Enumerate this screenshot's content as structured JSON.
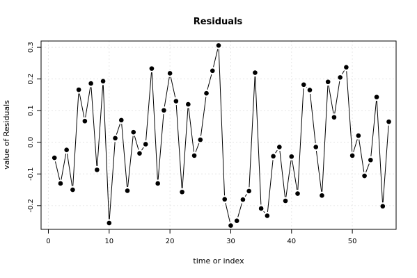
{
  "chart_data": {
    "type": "line",
    "title": "Residuals",
    "xlabel": "time or index",
    "ylabel": "value of Residuals",
    "xlim": [
      -1.2,
      57.2
    ],
    "ylim": [
      -0.275,
      0.32
    ],
    "x_ticks": [
      0,
      10,
      20,
      30,
      40,
      50
    ],
    "y_ticks": [
      -0.2,
      -0.1,
      0.0,
      0.1,
      0.2,
      0.3
    ],
    "y_tick_labels": [
      "-0.2",
      "-0.1",
      "0.0",
      "0.1",
      "0.2",
      "0.3"
    ],
    "grid": true,
    "line_color": "#000000",
    "marker_color": "#000000",
    "x": [
      1,
      2,
      3,
      4,
      5,
      6,
      7,
      8,
      9,
      10,
      11,
      12,
      13,
      14,
      15,
      16,
      17,
      18,
      19,
      20,
      21,
      22,
      23,
      24,
      25,
      26,
      27,
      28,
      29,
      30,
      31,
      32,
      33,
      34,
      35,
      36,
      37,
      38,
      39,
      40,
      41,
      42,
      43,
      44,
      45,
      46,
      47,
      48,
      49,
      50,
      51,
      52,
      53,
      54,
      55,
      56
    ],
    "values": [
      -0.049,
      -0.13,
      -0.024,
      -0.15,
      0.166,
      0.067,
      0.186,
      -0.087,
      0.193,
      -0.255,
      0.013,
      0.07,
      -0.153,
      0.032,
      -0.035,
      -0.006,
      0.233,
      -0.13,
      0.101,
      0.218,
      0.13,
      -0.157,
      0.12,
      -0.042,
      0.008,
      0.155,
      0.226,
      0.306,
      -0.18,
      -0.263,
      -0.248,
      -0.181,
      -0.154,
      0.22,
      -0.209,
      -0.232,
      -0.044,
      -0.015,
      -0.185,
      -0.045,
      -0.162,
      0.182,
      0.165,
      -0.015,
      -0.168,
      0.191,
      0.079,
      0.205,
      0.237,
      -0.042,
      0.021,
      -0.106,
      -0.056,
      0.143,
      -0.202,
      0.065
    ]
  }
}
